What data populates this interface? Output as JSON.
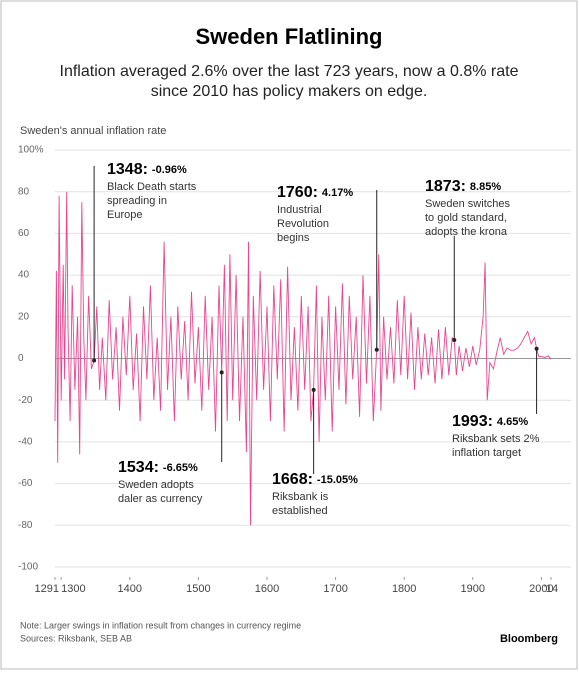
{
  "chart_data": {
    "type": "line",
    "title": "Sweden Flatlining",
    "subtitle": [
      "Inflation averaged 2.6% over the last 723 years, now a 0.8% rate",
      "since 2010 has policy makers on edge."
    ],
    "y_label": "Sweden's annual inflation rate",
    "note": "Note: Larger swings in inflation result from changes in currency regime",
    "source": "Sources: Riksbank, SEB AB",
    "brand": "Bloomberg",
    "xlim": [
      1291,
      2014
    ],
    "xticks": [
      1291,
      1300,
      1400,
      1500,
      1600,
      1700,
      1800,
      1900,
      2000,
      {
        "value": 2014,
        "label": "'14"
      }
    ],
    "ylim": [
      -100,
      100
    ],
    "yticks": [
      -100,
      -80,
      -60,
      -40,
      -20,
      0,
      20,
      40,
      60,
      80,
      {
        "value": 100,
        "label": "100%"
      }
    ],
    "grid": true,
    "series": [
      {
        "color": "#e8478f",
        "x": [
          1291,
          1293,
          1295,
          1297,
          1300,
          1303,
          1305,
          1308,
          1310,
          1313,
          1316,
          1320,
          1324,
          1327,
          1330,
          1333,
          1336,
          1340,
          1344,
          1348,
          1352,
          1356,
          1360,
          1365,
          1370,
          1375,
          1380,
          1385,
          1390,
          1395,
          1400,
          1405,
          1410,
          1415,
          1420,
          1425,
          1430,
          1435,
          1440,
          1445,
          1450,
          1455,
          1460,
          1465,
          1470,
          1475,
          1480,
          1485,
          1490,
          1495,
          1500,
          1505,
          1510,
          1515,
          1520,
          1525,
          1530,
          1534,
          1538,
          1542,
          1546,
          1550,
          1555,
          1560,
          1565,
          1570,
          1573,
          1576,
          1580,
          1585,
          1590,
          1595,
          1600,
          1605,
          1610,
          1615,
          1620,
          1625,
          1630,
          1635,
          1640,
          1645,
          1650,
          1655,
          1660,
          1664,
          1668,
          1672,
          1676,
          1680,
          1685,
          1690,
          1695,
          1700,
          1705,
          1710,
          1715,
          1720,
          1725,
          1730,
          1735,
          1740,
          1745,
          1750,
          1755,
          1760,
          1763,
          1766,
          1770,
          1775,
          1780,
          1785,
          1790,
          1795,
          1800,
          1805,
          1810,
          1815,
          1820,
          1825,
          1830,
          1835,
          1840,
          1845,
          1850,
          1855,
          1860,
          1865,
          1870,
          1873,
          1876,
          1880,
          1885,
          1890,
          1895,
          1900,
          1905,
          1910,
          1915,
          1918,
          1921,
          1925,
          1930,
          1935,
          1940,
          1945,
          1950,
          1955,
          1960,
          1965,
          1970,
          1975,
          1980,
          1985,
          1990,
          1993,
          1996,
          2000,
          2005,
          2010,
          2014
        ],
        "values": [
          -30,
          42,
          -50,
          78,
          -20,
          45,
          -10,
          80,
          15,
          -30,
          35,
          -15,
          20,
          -46,
          75,
          10,
          -20,
          30,
          -5,
          -0.96,
          25,
          -15,
          10,
          -20,
          28,
          -10,
          15,
          -25,
          20,
          -8,
          30,
          -15,
          12,
          -30,
          25,
          -10,
          35,
          -20,
          10,
          -25,
          56,
          -15,
          20,
          -30,
          25,
          -10,
          18,
          -20,
          32,
          -12,
          15,
          -25,
          30,
          -15,
          20,
          -35,
          35,
          -6.65,
          45,
          -30,
          50,
          -20,
          40,
          -30,
          20,
          -45,
          56,
          -80,
          30,
          -20,
          42,
          -15,
          25,
          -30,
          35,
          -10,
          38,
          -35,
          44,
          -20,
          15,
          -25,
          30,
          -15,
          25,
          -30,
          -15.05,
          35,
          -40,
          20,
          -20,
          30,
          -35,
          25,
          -15,
          36,
          -22,
          30,
          -10,
          20,
          -28,
          40,
          -12,
          30,
          -30,
          4.17,
          50,
          -25,
          20,
          -10,
          15,
          -12,
          28,
          -8,
          30,
          -10,
          22,
          -15,
          15,
          -10,
          12,
          -8,
          10,
          -12,
          14,
          -10,
          15,
          -8,
          10,
          8.85,
          -8,
          6,
          -6,
          5,
          -4,
          6,
          -3,
          4,
          20,
          46,
          -20,
          -2,
          -5,
          3,
          10,
          2,
          5,
          4,
          4,
          5,
          7,
          10,
          13,
          7,
          10,
          4.65,
          1,
          1,
          0.5,
          1.3,
          -0.2
        ]
      }
    ],
    "annotations": [
      {
        "year": 1348,
        "year_label": "1348:",
        "value": -0.96,
        "value_label": "-0.96%",
        "text": [
          "Black Death starts",
          "spreading in",
          "Europe"
        ]
      },
      {
        "year": 1534,
        "year_label": "1534:",
        "value": -6.65,
        "value_label": "-6.65%",
        "text": [
          "Sweden adopts",
          "daler as currency"
        ]
      },
      {
        "year": 1760,
        "year_label": "1760:",
        "value": 4.17,
        "value_label": "4.17%",
        "text": [
          "Industrial",
          "Revolution",
          "begins"
        ]
      },
      {
        "year": 1668,
        "year_label": "1668:",
        "value": -15.05,
        "value_label": "-15.05%",
        "text": [
          "Riksbank is",
          "established"
        ]
      },
      {
        "year": 1873,
        "year_label": "1873:",
        "value": 8.85,
        "value_label": "8.85%",
        "text": [
          "Sweden switches",
          "to gold standard,",
          "adopts the krona"
        ]
      },
      {
        "year": 1993,
        "year_label": "1993:",
        "value": 4.65,
        "value_label": "4.65%",
        "text": [
          "Riksbank sets 2%",
          "inflation target"
        ]
      }
    ]
  }
}
